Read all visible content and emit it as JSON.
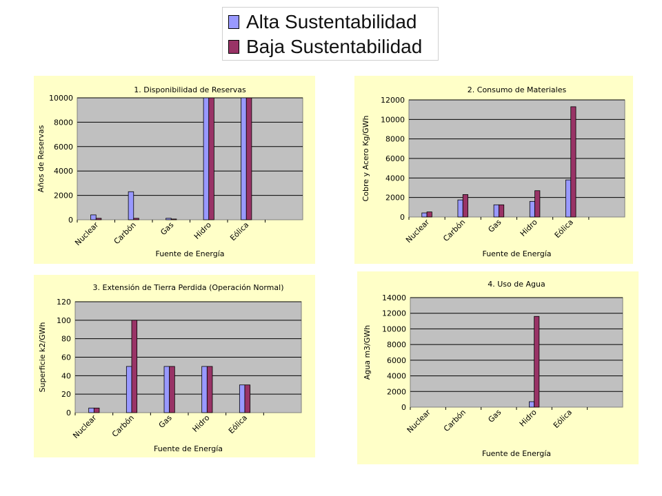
{
  "legend": {
    "items": [
      {
        "label": "Alta Sustentabilidad",
        "color": "#9999ff"
      },
      {
        "label": "Baja Sustentabilidad",
        "color": "#993366"
      }
    ]
  },
  "colors": {
    "panel_background": "#ffffc8",
    "plot_background": "#c0c0c0",
    "alta": "#9999ff",
    "baja": "#993366"
  },
  "chart_data": [
    {
      "type": "bar",
      "title": "1. Disponibilidad de Reservas",
      "xlabel": "Fuente de Energía",
      "ylabel": "Años de Reservas",
      "categories": [
        "Nuclear",
        "Carbón",
        "Gas",
        "Hidro",
        "Eólica"
      ],
      "ylim": [
        0,
        10000
      ],
      "yticks": [
        0,
        2000,
        4000,
        6000,
        8000,
        10000
      ],
      "grid": true,
      "series": [
        {
          "name": "Alta Sustentabilidad",
          "values": [
            400,
            2300,
            120,
            10000,
            10000
          ]
        },
        {
          "name": "Baja Sustentabilidad",
          "values": [
            120,
            120,
            60,
            10000,
            10000
          ]
        }
      ]
    },
    {
      "type": "bar",
      "title": "2. Consumo de Materiales",
      "xlabel": "Fuente de Energía",
      "ylabel": "Cobre y Acero Kg/GWh",
      "categories": [
        "Nuclear",
        "Carbón",
        "Gas",
        "Hidro",
        "Eólica"
      ],
      "ylim": [
        0,
        12000
      ],
      "yticks": [
        0,
        2000,
        4000,
        6000,
        8000,
        10000,
        12000
      ],
      "grid": true,
      "series": [
        {
          "name": "Alta Sustentabilidad",
          "values": [
            420,
            1750,
            1250,
            1600,
            3800
          ]
        },
        {
          "name": "Baja Sustentabilidad",
          "values": [
            520,
            2300,
            1250,
            2700,
            11300
          ]
        }
      ]
    },
    {
      "type": "bar",
      "title": "3. Extensión de Tierra Perdida (Operación Normal)",
      "xlabel": "Fuente de Energía",
      "ylabel": "Superficie k2/GWh",
      "categories": [
        "Nuclear",
        "Carbón",
        "Gas",
        "Hidro",
        "Eólica"
      ],
      "ylim": [
        0,
        120
      ],
      "yticks": [
        0,
        20,
        40,
        60,
        80,
        100,
        120
      ],
      "grid": true,
      "series": [
        {
          "name": "Alta Sustentabilidad",
          "values": [
            5,
            50,
            50,
            50,
            30
          ]
        },
        {
          "name": "Baja Sustentabilidad",
          "values": [
            5,
            100,
            50,
            50,
            30
          ]
        }
      ]
    },
    {
      "type": "bar",
      "title": "4. Uso de Agua",
      "xlabel": "Fuente de Energía",
      "ylabel": "Agua m3/GWh",
      "categories": [
        "Nuclear",
        "Carbón",
        "Gas",
        "Hidro",
        "Eólica"
      ],
      "ylim": [
        0,
        14000
      ],
      "yticks": [
        0,
        2000,
        4000,
        6000,
        8000,
        10000,
        12000,
        14000
      ],
      "grid": true,
      "series": [
        {
          "name": "Alta Sustentabilidad",
          "values": [
            0,
            0,
            0,
            700,
            0
          ]
        },
        {
          "name": "Baja Sustentabilidad",
          "values": [
            0,
            0,
            0,
            11600,
            0
          ]
        }
      ]
    }
  ]
}
